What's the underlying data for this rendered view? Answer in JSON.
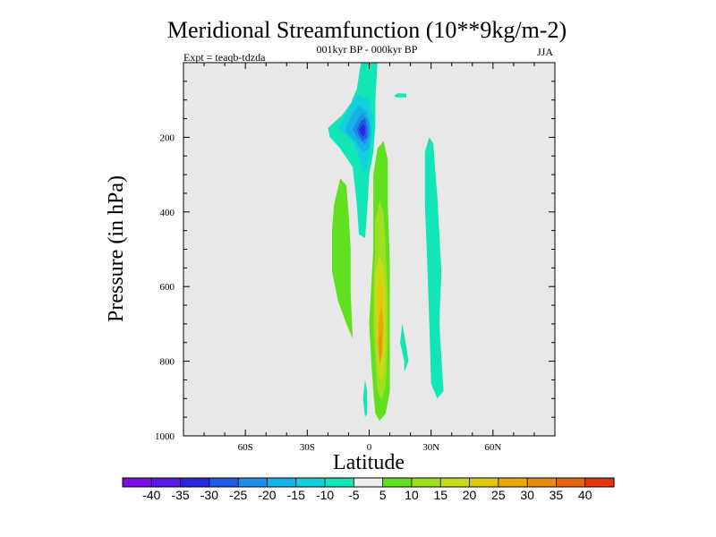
{
  "chart_data": {
    "type": "contour",
    "title": "Meridional Streamfunction (10**9kg/m-2)",
    "subtitle": "001kyr BP - 000kyr BP",
    "left_label": "Expt = teaqb-tdzda",
    "right_label": "JJA",
    "xlabel": "Latitude",
    "ylabel": "Pressure (in hPa)",
    "xlim": [
      -90,
      90
    ],
    "ylim": [
      1000,
      0
    ],
    "x_ticks": [
      {
        "v": -60,
        "label": "60S"
      },
      {
        "v": -30,
        "label": "30S"
      },
      {
        "v": 0,
        "label": "0"
      },
      {
        "v": 30,
        "label": "30N"
      },
      {
        "v": 60,
        "label": "60N"
      }
    ],
    "y_ticks": [
      {
        "v": 200,
        "label": "200"
      },
      {
        "v": 400,
        "label": "400"
      },
      {
        "v": 600,
        "label": "600"
      },
      {
        "v": 800,
        "label": "800"
      },
      {
        "v": 1000,
        "label": "1000"
      }
    ],
    "colorbar": {
      "colors": [
        "#7a0fe0",
        "#5a1be6",
        "#2a28d8",
        "#1e5be6",
        "#1b8fe6",
        "#16b3e6",
        "#14d0dc",
        "#12e6b4",
        "#eeeeee",
        "#60e01e",
        "#9ee01e",
        "#c6dc1a",
        "#e0c80a",
        "#e6a80a",
        "#e68c0e",
        "#e6640e",
        "#e0360e"
      ],
      "labels": [
        "-40",
        "-35",
        "-30",
        "-25",
        "-20",
        "-15",
        "-10",
        "-5",
        "5",
        "10",
        "15",
        "20",
        "25",
        "30",
        "35",
        "40"
      ]
    },
    "regions": [
      {
        "color": "#12e6b4",
        "level": "-10 to -5",
        "points": [
          [
            -20,
            175
          ],
          [
            -13,
            140
          ],
          [
            -9,
            110
          ],
          [
            -6,
            70
          ],
          [
            -4,
            0
          ],
          [
            4,
            0
          ],
          [
            3,
            100
          ],
          [
            3,
            170
          ],
          [
            2,
            240
          ],
          [
            0,
            300
          ],
          [
            -1,
            400
          ],
          [
            -2,
            470
          ],
          [
            -5,
            460
          ],
          [
            -6,
            380
          ],
          [
            -8,
            280
          ],
          [
            -14,
            230
          ],
          [
            -19,
            200
          ]
        ]
      },
      {
        "color": "#14d0dc",
        "level": "-15 to -10",
        "points": [
          [
            -15,
            175
          ],
          [
            -10,
            125
          ],
          [
            -7,
            95
          ],
          [
            -5,
            85
          ],
          [
            0,
            100
          ],
          [
            2,
            150
          ],
          [
            1,
            220
          ],
          [
            -1,
            280
          ],
          [
            -3,
            300
          ],
          [
            -5,
            250
          ],
          [
            -9,
            200
          ],
          [
            -13,
            190
          ]
        ]
      },
      {
        "color": "#16b3e6",
        "level": "-20 to -15",
        "points": [
          [
            -12,
            180
          ],
          [
            -8,
            135
          ],
          [
            -5,
            115
          ],
          [
            -1,
            130
          ],
          [
            1,
            175
          ],
          [
            0,
            230
          ],
          [
            -3,
            240
          ],
          [
            -7,
            210
          ],
          [
            -10,
            195
          ]
        ]
      },
      {
        "color": "#1b8fe6",
        "level": "-25 to -20",
        "points": [
          [
            -8,
            180
          ],
          [
            -5,
            145
          ],
          [
            -3,
            135
          ],
          [
            0,
            160
          ],
          [
            0,
            195
          ],
          [
            -2,
            220
          ],
          [
            -6,
            200
          ]
        ]
      },
      {
        "color": "#1e5be6",
        "level": "-30 to -25",
        "points": [
          [
            -6,
            180
          ],
          [
            -4,
            155
          ],
          [
            -2,
            150
          ],
          [
            -1,
            175
          ],
          [
            -1,
            200
          ],
          [
            -3,
            210
          ],
          [
            -5,
            195
          ]
        ]
      },
      {
        "color": "#2a28d8",
        "level": "-35 to -30",
        "points": [
          [
            -5,
            180
          ],
          [
            -3,
            165
          ],
          [
            -2,
            170
          ],
          [
            -2,
            190
          ],
          [
            -3,
            198
          ],
          [
            -4,
            190
          ]
        ]
      },
      {
        "color": "#12e6b4",
        "level": "-10 to -5",
        "points": [
          [
            -2,
            850
          ],
          [
            -1,
            880
          ],
          [
            -1,
            940
          ],
          [
            -2,
            950
          ],
          [
            -3,
            900
          ]
        ]
      },
      {
        "color": "#12e6b4",
        "level": "-10 to -5",
        "points": [
          [
            12,
            88
          ],
          [
            14,
            82
          ],
          [
            18,
            83
          ],
          [
            18,
            93
          ],
          [
            13,
            93
          ]
        ]
      },
      {
        "color": "#12e6b4",
        "level": "-10 to -5",
        "points": [
          [
            27,
            240
          ],
          [
            29,
            200
          ],
          [
            31,
            215
          ],
          [
            33,
            360
          ],
          [
            35,
            560
          ],
          [
            34,
            700
          ],
          [
            36,
            880
          ],
          [
            33,
            900
          ],
          [
            30,
            860
          ],
          [
            29,
            680
          ],
          [
            28,
            520
          ],
          [
            27,
            380
          ]
        ]
      },
      {
        "color": "#12e6b4",
        "level": "-10 to -5",
        "points": [
          [
            17,
            800
          ],
          [
            15,
            750
          ],
          [
            16,
            700
          ],
          [
            18,
            760
          ],
          [
            19,
            800
          ],
          [
            17,
            830
          ]
        ]
      },
      {
        "color": "#60e01e",
        "level": "5 to 10",
        "points": [
          [
            -17,
            380
          ],
          [
            -14,
            310
          ],
          [
            -11,
            330
          ],
          [
            -10,
            400
          ],
          [
            -9,
            500
          ],
          [
            -9,
            620
          ],
          [
            -8,
            740
          ],
          [
            -11,
            700
          ],
          [
            -15,
            640
          ],
          [
            -18,
            560
          ],
          [
            -18,
            450
          ]
        ]
      },
      {
        "color": "#60e01e",
        "level": "5 to 10",
        "points": [
          [
            2,
            300
          ],
          [
            4,
            230
          ],
          [
            7,
            210
          ],
          [
            9,
            260
          ],
          [
            9,
            380
          ],
          [
            10,
            540
          ],
          [
            10,
            680
          ],
          [
            10,
            800
          ],
          [
            10,
            880
          ],
          [
            8,
            940
          ],
          [
            5,
            960
          ],
          [
            3,
            940
          ],
          [
            2,
            880
          ],
          [
            1,
            800
          ],
          [
            0,
            700
          ],
          [
            1,
            600
          ],
          [
            2,
            500
          ],
          [
            2,
            400
          ]
        ]
      },
      {
        "color": "#9ee01e",
        "level": "10 to 15",
        "points": [
          [
            3,
            420
          ],
          [
            5,
            370
          ],
          [
            7,
            400
          ],
          [
            8,
            500
          ],
          [
            9,
            620
          ],
          [
            9,
            760
          ],
          [
            8,
            870
          ],
          [
            6,
            905
          ],
          [
            4,
            880
          ],
          [
            3,
            800
          ],
          [
            2,
            700
          ],
          [
            2,
            600
          ],
          [
            3,
            500
          ]
        ]
      },
      {
        "color": "#c6dc1a",
        "level": "15 to 20",
        "points": [
          [
            3,
            560
          ],
          [
            5,
            520
          ],
          [
            7,
            540
          ],
          [
            8,
            620
          ],
          [
            8,
            760
          ],
          [
            7,
            840
          ],
          [
            5,
            850
          ],
          [
            4,
            800
          ],
          [
            3,
            700
          ],
          [
            3,
            620
          ]
        ]
      },
      {
        "color": "#e0c80a",
        "level": "20 to 25",
        "points": [
          [
            4,
            620
          ],
          [
            5,
            575
          ],
          [
            7,
            600
          ],
          [
            7,
            760
          ],
          [
            5,
            820
          ],
          [
            4,
            760
          ],
          [
            4,
            700
          ]
        ]
      },
      {
        "color": "#e6a80a",
        "level": "25 to 30",
        "points": [
          [
            5,
            680
          ],
          [
            6,
            650
          ],
          [
            7,
            700
          ],
          [
            6,
            790
          ],
          [
            5,
            800
          ],
          [
            4,
            750
          ]
        ]
      },
      {
        "color": "#e68c0e",
        "level": "30 to 35",
        "points": [
          [
            5,
            740
          ],
          [
            6,
            720
          ],
          [
            6,
            780
          ],
          [
            5,
            810
          ]
        ]
      }
    ]
  }
}
